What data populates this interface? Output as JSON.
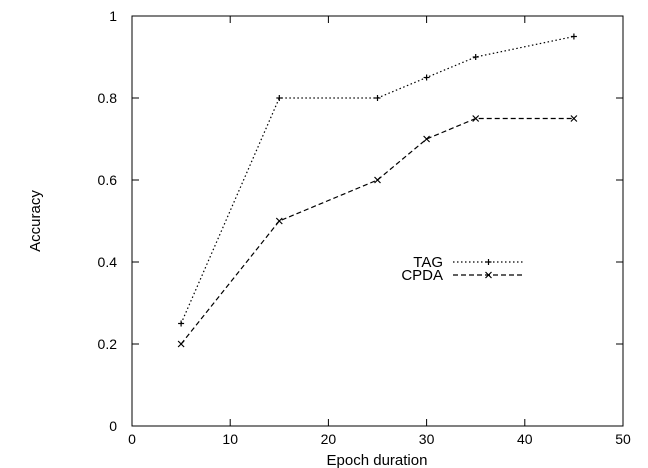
{
  "chart_data": {
    "type": "line",
    "title": "",
    "xlabel": "Epoch duration",
    "ylabel": "Accuracy",
    "xlim": [
      0,
      50
    ],
    "ylim": [
      0,
      1
    ],
    "xticks": [
      0,
      10,
      20,
      30,
      40,
      50
    ],
    "yticks": [
      0,
      0.2,
      0.4,
      0.6,
      0.8,
      1
    ],
    "ytick_labels": [
      "0",
      "0.2",
      "0.4",
      "0.6",
      "0.8",
      "1"
    ],
    "grid": false,
    "legend_position": "center-right",
    "series": [
      {
        "name": "TAG",
        "marker": "plus",
        "line_style": "dotted",
        "x": [
          5,
          15,
          25,
          30,
          35,
          45
        ],
        "values": [
          0.25,
          0.8,
          0.8,
          0.85,
          0.9,
          0.95
        ]
      },
      {
        "name": "CPDA",
        "marker": "x",
        "line_style": "dashed",
        "x": [
          5,
          15,
          25,
          30,
          35,
          45
        ],
        "values": [
          0.2,
          0.5,
          0.6,
          0.7,
          0.75,
          0.75
        ]
      }
    ]
  }
}
